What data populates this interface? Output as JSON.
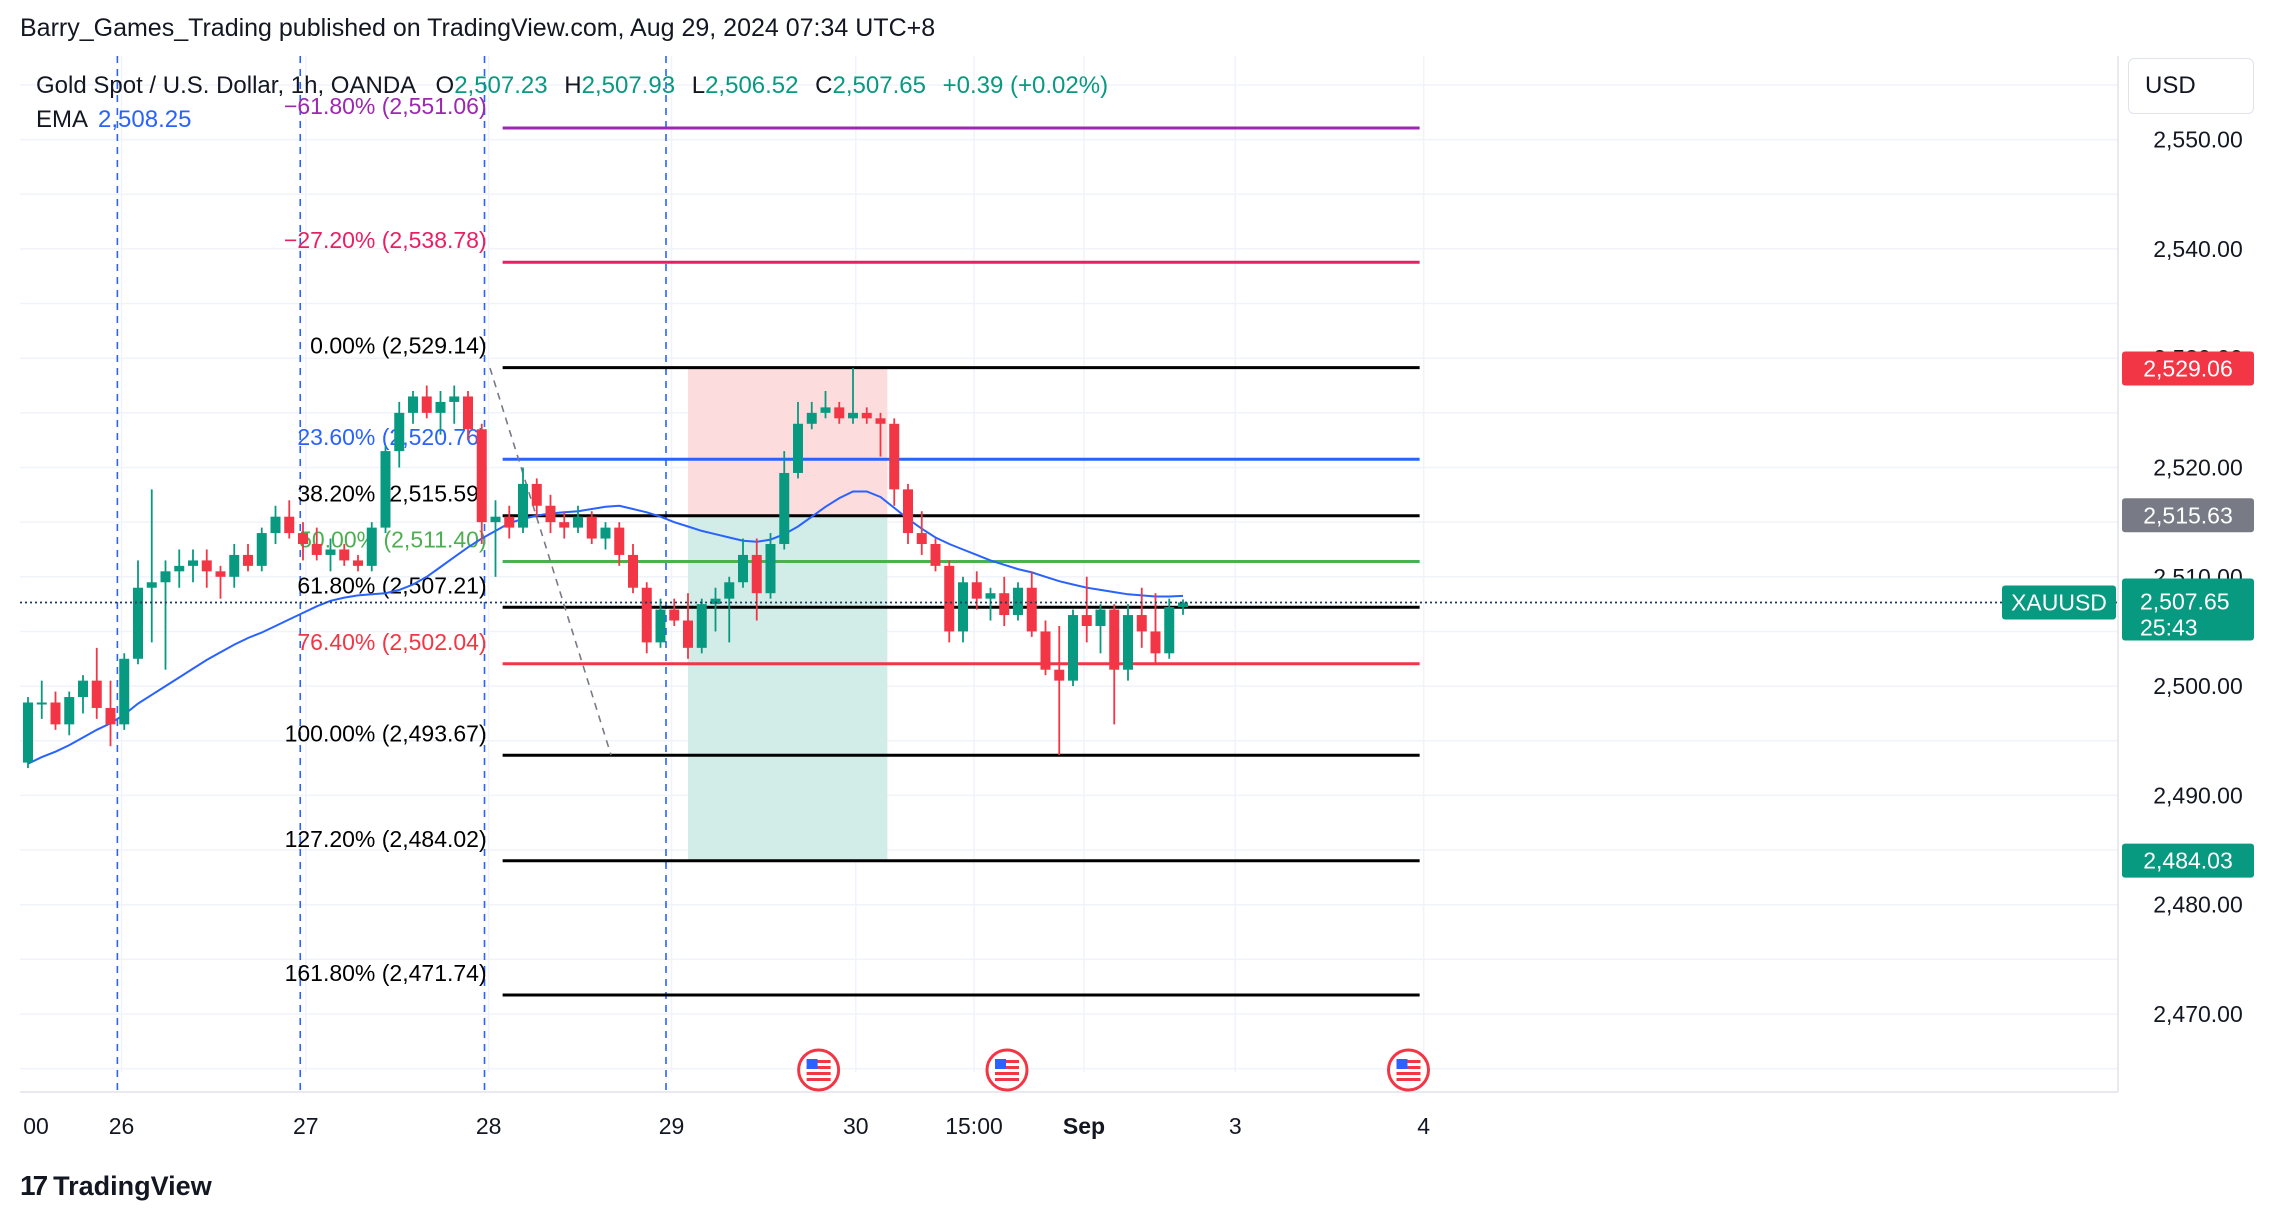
{
  "header": {
    "publisher": "Barry_Games_Trading published on TradingView.com, Aug 29, 2024 07:34 UTC+8"
  },
  "legend": {
    "symbol": "Gold Spot / U.S. Dollar, 1h, OANDA",
    "o_label": "O",
    "o_value": "2,507.23",
    "h_label": "H",
    "h_value": "2,507.93",
    "l_label": "L",
    "l_value": "2,506.52",
    "c_label": "C",
    "c_value": "2,507.65",
    "change": "+0.39 (+0.02%)",
    "ema_label": "EMA",
    "ema_value": "2,508.25"
  },
  "currency_button": "USD",
  "footer": {
    "logo_mark": "17",
    "logo_text": "TradingView"
  },
  "colors": {
    "up": "#089981",
    "down": "#f23645",
    "ema": "#2962ff",
    "fib_blue": "#2962ff",
    "fib_green": "#4caf50",
    "fib_red": "#f23645",
    "fib_pink": "#e91e63",
    "fib_purple": "#9c27b0",
    "fib_black": "#000000",
    "risk_zone": "#fcdcdc",
    "reward_zone": "#d2ece8",
    "grid": "#f0f3fa"
  },
  "chart_data": {
    "type": "candlestick",
    "symbol": "XAUUSD",
    "timeframe": "1h",
    "ylim": [
      2462,
      2562
    ],
    "y_ticks": [
      2470,
      2480,
      2490,
      2500,
      2510,
      2520,
      2530,
      2540,
      2550
    ],
    "y_tick_labels": [
      "2,470.00",
      "2,480.00",
      "2,490.00",
      "2,500.00",
      "2,510.00",
      "2,520.00",
      "2,530.00",
      "2,540.00",
      "2,550.00"
    ],
    "x_labels": [
      {
        "label": "00",
        "x": -2.0
      },
      {
        "label": "26",
        "x": 6.8
      },
      {
        "label": "27",
        "x": 20.2
      },
      {
        "label": "28",
        "x": 33.5
      },
      {
        "label": "29",
        "x": 46.8
      },
      {
        "label": "30",
        "x": 60.2
      },
      {
        "label": "15:00",
        "x": 68.8
      },
      {
        "label": "Sep",
        "x": 76.8
      },
      {
        "label": "3",
        "x": 87.8
      },
      {
        "label": "4",
        "x": 101.5
      }
    ],
    "session_lines_x": [
      6.5,
      19.8,
      33.2,
      46.4
    ],
    "event_icons_x": [
      57.5,
      71.2,
      100.4
    ],
    "ema_values": [
      2492.9,
      2493.5,
      2494.0,
      2494.6,
      2495.3,
      2496.0,
      2496.6,
      2497.4,
      2498.4,
      2499.2,
      2500.0,
      2500.8,
      2501.6,
      2502.4,
      2503.1,
      2503.8,
      2504.4,
      2504.9,
      2505.5,
      2506.1,
      2506.7,
      2507.3,
      2507.8,
      2508.1,
      2508.3,
      2508.4,
      2508.5,
      2508.8,
      2509.3,
      2510.0,
      2510.9,
      2511.8,
      2512.7,
      2513.5,
      2514.2,
      2514.9,
      2515.3,
      2515.6,
      2515.8,
      2515.9,
      2516.0,
      2516.2,
      2516.4,
      2516.5,
      2516.2,
      2515.9,
      2515.5,
      2515.0,
      2514.6,
      2514.2,
      2513.9,
      2513.6,
      2513.3,
      2513.2,
      2513.4,
      2513.9,
      2514.6,
      2515.5,
      2516.4,
      2517.2,
      2517.8,
      2517.8,
      2517.3,
      2516.3,
      2515.3,
      2514.4,
      2513.6,
      2513.0,
      2512.5,
      2512.0,
      2511.5,
      2511.1,
      2510.7,
      2510.4,
      2510.0,
      2509.6,
      2509.3,
      2509.0,
      2508.8,
      2508.6,
      2508.4,
      2508.3,
      2508.2,
      2508.2,
      2508.25
    ],
    "ohlc": [
      [
        2493.0,
        2499.0,
        2492.5,
        2498.5
      ],
      [
        2498.5,
        2500.5,
        2497.0,
        2498.5
      ],
      [
        2498.5,
        2499.5,
        2496.0,
        2496.5
      ],
      [
        2496.5,
        2499.5,
        2495.5,
        2499.0
      ],
      [
        2499.0,
        2501.0,
        2497.5,
        2500.5
      ],
      [
        2500.5,
        2503.5,
        2497.0,
        2498.0
      ],
      [
        2498.0,
        2500.5,
        2494.5,
        2496.5
      ],
      [
        2496.5,
        2503.0,
        2496.0,
        2502.5
      ],
      [
        2502.5,
        2511.5,
        2502.0,
        2509.0
      ],
      [
        2509.0,
        2518.0,
        2504.0,
        2509.5
      ],
      [
        2509.5,
        2511.5,
        2501.5,
        2510.5
      ],
      [
        2510.5,
        2512.5,
        2509.0,
        2511.0
      ],
      [
        2511.0,
        2512.5,
        2509.5,
        2511.5
      ],
      [
        2511.5,
        2512.5,
        2509.0,
        2510.5
      ],
      [
        2510.5,
        2511.0,
        2508.0,
        2510.0
      ],
      [
        2510.0,
        2513.0,
        2509.0,
        2512.0
      ],
      [
        2512.0,
        2513.0,
        2510.5,
        2511.0
      ],
      [
        2511.0,
        2514.5,
        2510.5,
        2514.0
      ],
      [
        2514.0,
        2516.5,
        2513.0,
        2515.5
      ],
      [
        2515.5,
        2517.0,
        2513.5,
        2514.0
      ],
      [
        2514.0,
        2515.0,
        2511.5,
        2513.0
      ],
      [
        2513.0,
        2514.5,
        2511.5,
        2512.0
      ],
      [
        2512.0,
        2513.5,
        2510.5,
        2512.5
      ],
      [
        2512.5,
        2513.0,
        2511.0,
        2511.5
      ],
      [
        2511.5,
        2512.0,
        2510.5,
        2511.0
      ],
      [
        2511.0,
        2515.0,
        2510.5,
        2514.5
      ],
      [
        2514.5,
        2522.0,
        2514.0,
        2521.5
      ],
      [
        2521.5,
        2526.0,
        2520.0,
        2525.0
      ],
      [
        2525.0,
        2527.0,
        2524.0,
        2526.5
      ],
      [
        2526.5,
        2527.5,
        2524.5,
        2525.0
      ],
      [
        2525.0,
        2527.0,
        2523.0,
        2526.0
      ],
      [
        2526.0,
        2527.5,
        2524.0,
        2526.5
      ],
      [
        2526.5,
        2527.0,
        2522.5,
        2523.5
      ],
      [
        2523.5,
        2524.0,
        2513.0,
        2515.0
      ],
      [
        2515.0,
        2517.0,
        2510.0,
        2515.5
      ],
      [
        2515.5,
        2516.5,
        2513.5,
        2514.5
      ],
      [
        2514.5,
        2520.0,
        2514.0,
        2518.5
      ],
      [
        2518.5,
        2519.0,
        2515.5,
        2516.5
      ],
      [
        2516.5,
        2517.5,
        2514.0,
        2515.0
      ],
      [
        2515.0,
        2516.0,
        2513.5,
        2514.5
      ],
      [
        2514.5,
        2516.5,
        2514.0,
        2515.5
      ],
      [
        2515.5,
        2516.0,
        2513.0,
        2513.5
      ],
      [
        2513.5,
        2515.0,
        2512.5,
        2514.5
      ],
      [
        2514.5,
        2515.0,
        2511.0,
        2512.0
      ],
      [
        2512.0,
        2513.0,
        2508.5,
        2509.0
      ],
      [
        2509.0,
        2509.5,
        2503.0,
        2504.0
      ],
      [
        2504.0,
        2508.0,
        2503.5,
        2507.0
      ],
      [
        2507.0,
        2508.0,
        2505.5,
        2506.0
      ],
      [
        2506.0,
        2508.5,
        2502.5,
        2503.5
      ],
      [
        2503.5,
        2508.0,
        2503.0,
        2507.5
      ],
      [
        2507.5,
        2509.0,
        2505.0,
        2508.0
      ],
      [
        2508.0,
        2510.0,
        2504.0,
        2509.5
      ],
      [
        2509.5,
        2513.5,
        2509.0,
        2512.0
      ],
      [
        2512.0,
        2513.5,
        2506.0,
        2508.5
      ],
      [
        2508.5,
        2514.0,
        2508.0,
        2513.0
      ],
      [
        2513.0,
        2521.5,
        2512.5,
        2519.5
      ],
      [
        2519.5,
        2526.0,
        2519.0,
        2524.0
      ],
      [
        2524.0,
        2526.0,
        2523.5,
        2525.0
      ],
      [
        2525.0,
        2527.0,
        2524.5,
        2525.5
      ],
      [
        2525.5,
        2526.0,
        2524.0,
        2524.5
      ],
      [
        2524.5,
        2529.1,
        2524.0,
        2525.0
      ],
      [
        2525.0,
        2525.5,
        2524.0,
        2524.5
      ],
      [
        2524.5,
        2525.0,
        2521.0,
        2524.0
      ],
      [
        2524.0,
        2524.5,
        2516.5,
        2518.0
      ],
      [
        2518.0,
        2518.5,
        2513.0,
        2514.0
      ],
      [
        2514.0,
        2516.0,
        2512.0,
        2513.0
      ],
      [
        2513.0,
        2513.5,
        2510.5,
        2511.0
      ],
      [
        2511.0,
        2511.5,
        2504.0,
        2505.0
      ],
      [
        2505.0,
        2510.0,
        2504.0,
        2509.5
      ],
      [
        2509.5,
        2510.5,
        2507.0,
        2508.0
      ],
      [
        2508.0,
        2509.0,
        2506.0,
        2508.5
      ],
      [
        2508.5,
        2510.0,
        2505.5,
        2506.5
      ],
      [
        2506.5,
        2509.5,
        2506.0,
        2509.0
      ],
      [
        2509.0,
        2510.5,
        2504.5,
        2505.0
      ],
      [
        2505.0,
        2506.0,
        2501.0,
        2501.5
      ],
      [
        2501.5,
        2505.5,
        2493.7,
        2500.5
      ],
      [
        2500.5,
        2507.0,
        2500.0,
        2506.5
      ],
      [
        2506.5,
        2510.0,
        2504.0,
        2505.5
      ],
      [
        2505.5,
        2507.5,
        2503.0,
        2507.0
      ],
      [
        2507.0,
        2507.5,
        2496.5,
        2501.5
      ],
      [
        2501.5,
        2507.5,
        2500.5,
        2506.5
      ],
      [
        2506.5,
        2509.0,
        2503.5,
        2505.0
      ],
      [
        2505.0,
        2508.5,
        2502.0,
        2503.0
      ],
      [
        2503.0,
        2508.0,
        2502.5,
        2507.23
      ],
      [
        2507.23,
        2507.93,
        2506.52,
        2507.65
      ]
    ],
    "fib_start_x": 33.5,
    "fib_end_x": 101.5,
    "fib_levels": [
      {
        "label": "−61.80% (2,551.06)",
        "value": 2551.06,
        "color": "#9c27b0"
      },
      {
        "label": "−27.20% (2,538.78)",
        "value": 2538.78,
        "color": "#e91e63"
      },
      {
        "label": "0.00% (2,529.14)",
        "value": 2529.14,
        "color": "#000000"
      },
      {
        "label": "23.60% (2,520.76)",
        "value": 2520.76,
        "color": "#2962ff"
      },
      {
        "label": "38.20% (2,515.59)",
        "value": 2515.59,
        "color": "#000000"
      },
      {
        "label": "50.00% (2,511.40)",
        "value": 2511.4,
        "color": "#4caf50"
      },
      {
        "label": "61.80% (2,507.21)",
        "value": 2507.21,
        "color": "#000000"
      },
      {
        "label": "76.40% (2,502.04)",
        "value": 2502.04,
        "color": "#f23645"
      },
      {
        "label": "100.00% (2,493.67)",
        "value": 2493.67,
        "color": "#000000"
      },
      {
        "label": "127.20% (2,484.02)",
        "value": 2484.02,
        "color": "#000000"
      },
      {
        "label": "161.80% (2,471.74)",
        "value": 2471.74,
        "color": "#000000"
      }
    ],
    "trend_line": {
      "x1": 33.6,
      "y1": 2529.1,
      "x2": 42.4,
      "y2": 2493.7
    },
    "position": {
      "x_start": 48.0,
      "x_end": 62.5,
      "stop": 2529.06,
      "entry": 2515.63,
      "target": 2484.03
    },
    "price_tags": [
      {
        "text": "2,529.06",
        "value": 2529.06,
        "color": "#f23645"
      },
      {
        "text": "2,515.63",
        "value": 2515.63,
        "color": "#787b86"
      },
      {
        "text": "2,484.03",
        "value": 2484.03,
        "color": "#089981"
      }
    ],
    "last_price": {
      "symbol": "XAUUSD",
      "price": "2,507.65",
      "value": 2507.65,
      "countdown": "25:43",
      "color": "#089981"
    }
  }
}
